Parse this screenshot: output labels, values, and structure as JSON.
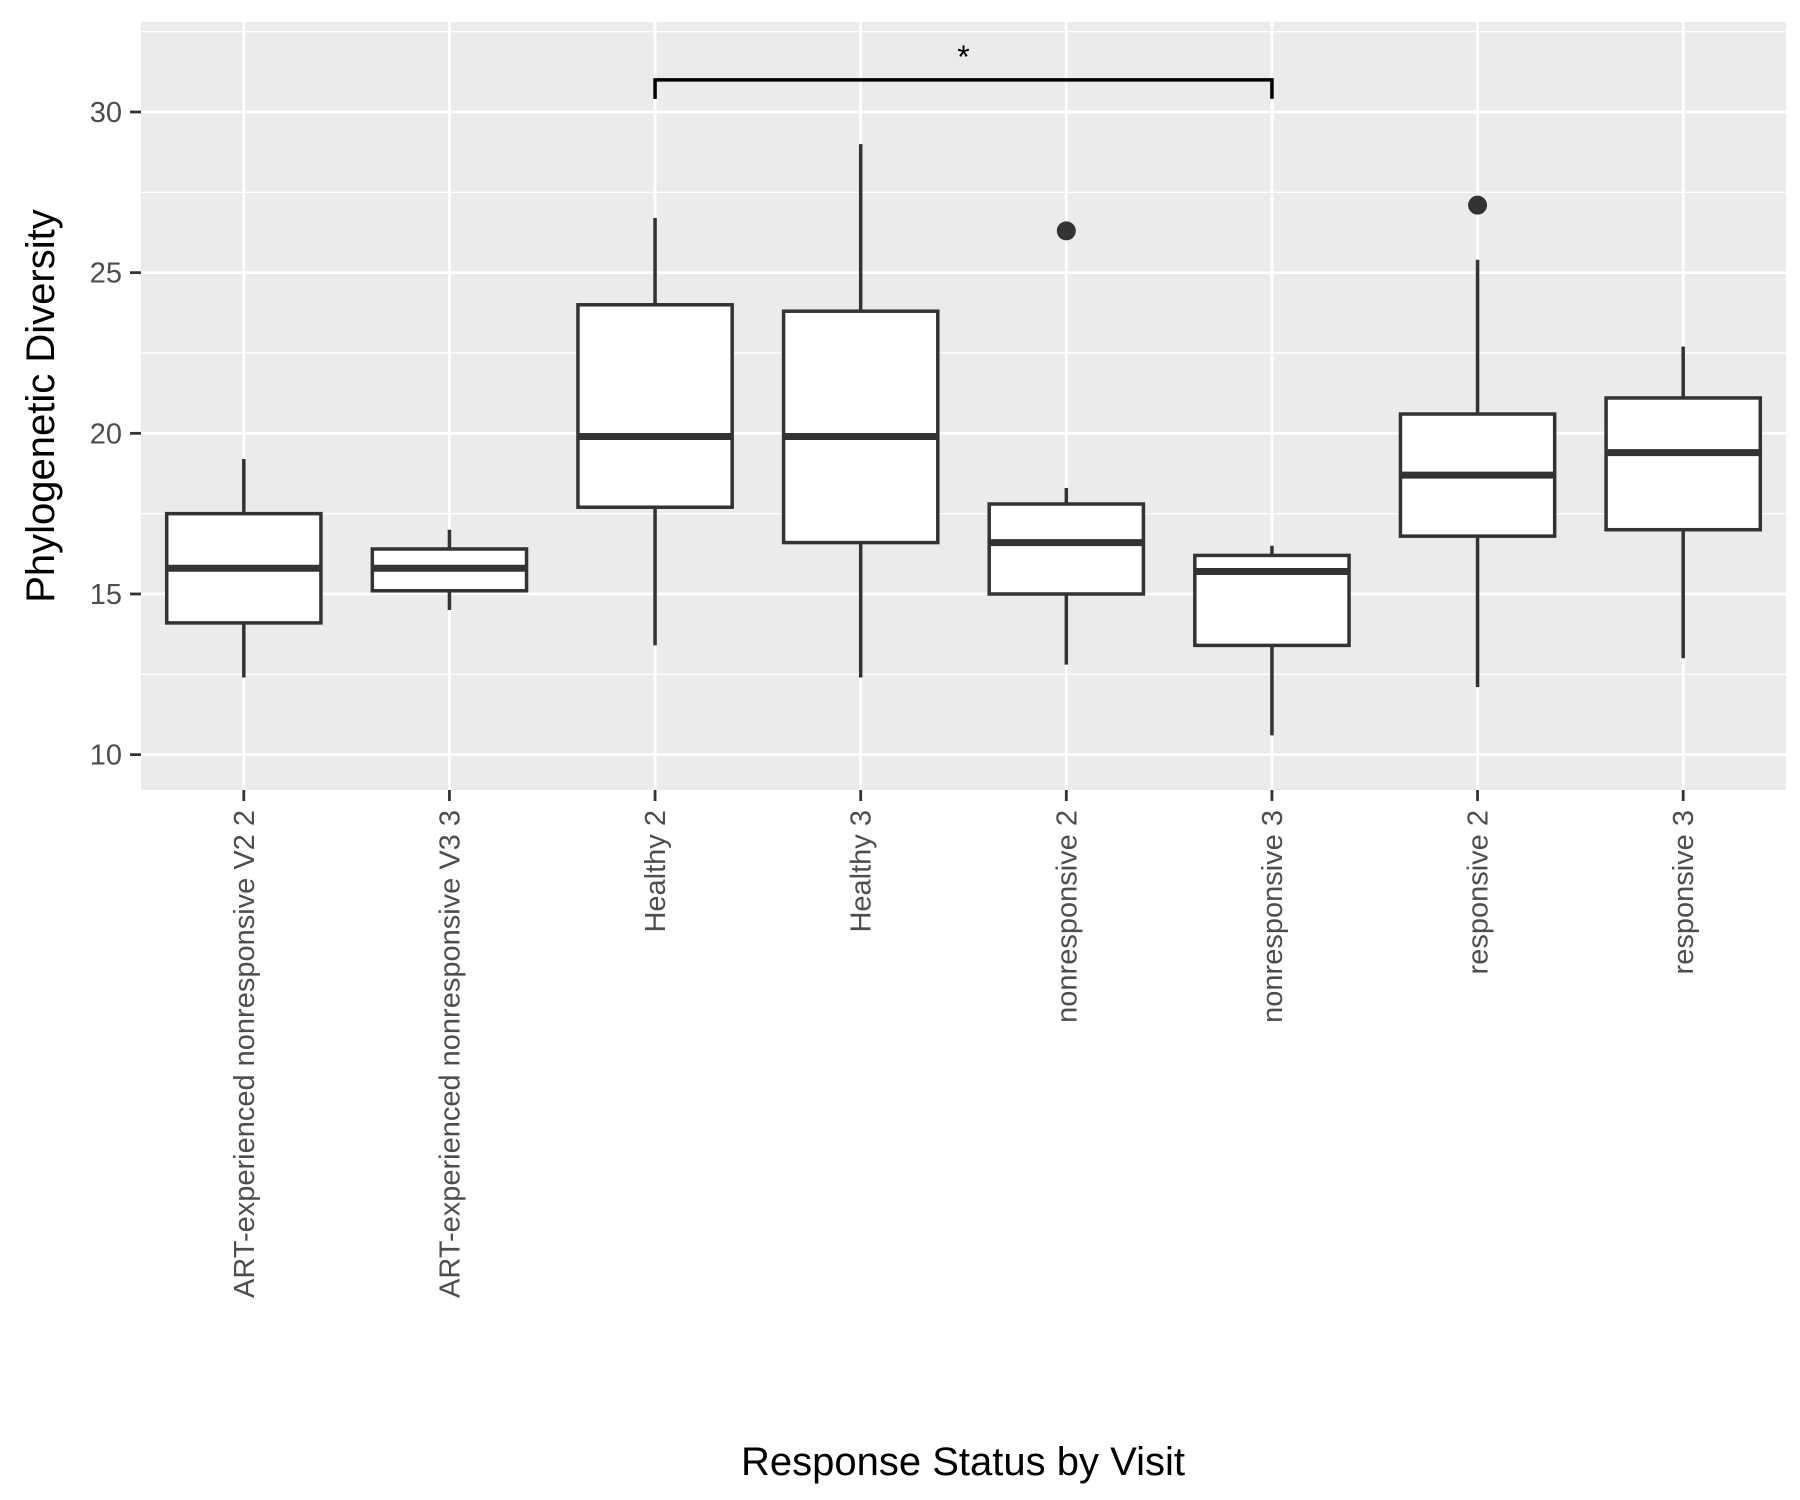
{
  "chart_data": {
    "type": "box",
    "title": "",
    "xlabel": "Response Status by Visit",
    "ylabel": "Phylogenetic Diversity",
    "ylim": [
      8.9,
      32.8
    ],
    "yticks": [
      10,
      15,
      20,
      25,
      30
    ],
    "grid": true,
    "legend": "none",
    "categories": [
      "ART-experienced nonresponsive V2 2",
      "ART-experienced nonresponsive V3 3",
      "Healthy 2",
      "Healthy 3",
      "nonresponsive 2",
      "nonresponsive 3",
      "responsive 2",
      "responsive 3"
    ],
    "boxes": [
      {
        "lower_whisker": 12.4,
        "q1": 14.1,
        "median": 15.8,
        "q3": 17.5,
        "upper_whisker": 19.2,
        "outliers": []
      },
      {
        "lower_whisker": 14.5,
        "q1": 15.1,
        "median": 15.8,
        "q3": 16.4,
        "upper_whisker": 17.0,
        "outliers": []
      },
      {
        "lower_whisker": 13.4,
        "q1": 17.7,
        "median": 19.9,
        "q3": 24.0,
        "upper_whisker": 26.7,
        "outliers": []
      },
      {
        "lower_whisker": 12.4,
        "q1": 16.6,
        "median": 19.9,
        "q3": 23.8,
        "upper_whisker": 29.0,
        "outliers": []
      },
      {
        "lower_whisker": 12.8,
        "q1": 15.0,
        "median": 16.6,
        "q3": 17.8,
        "upper_whisker": 18.3,
        "outliers": [
          26.3
        ]
      },
      {
        "lower_whisker": 10.6,
        "q1": 13.4,
        "median": 15.7,
        "q3": 16.2,
        "upper_whisker": 16.5,
        "outliers": []
      },
      {
        "lower_whisker": 12.1,
        "q1": 16.8,
        "median": 18.7,
        "q3": 20.6,
        "upper_whisker": 25.4,
        "outliers": [
          27.1
        ]
      },
      {
        "lower_whisker": 13.0,
        "q1": 17.0,
        "median": 19.4,
        "q3": 21.1,
        "upper_whisker": 22.7,
        "outliers": []
      }
    ],
    "annotations": [
      {
        "type": "significance-bracket",
        "from": "Healthy 2",
        "to": "nonresponsive 3",
        "y": 31.0,
        "label": "*"
      }
    ],
    "colors": {
      "panel": "#ebebeb",
      "grid": "#ffffff",
      "box_fill": "#ffffff",
      "box_stroke": "#333333",
      "bracket": "#000000"
    }
  }
}
